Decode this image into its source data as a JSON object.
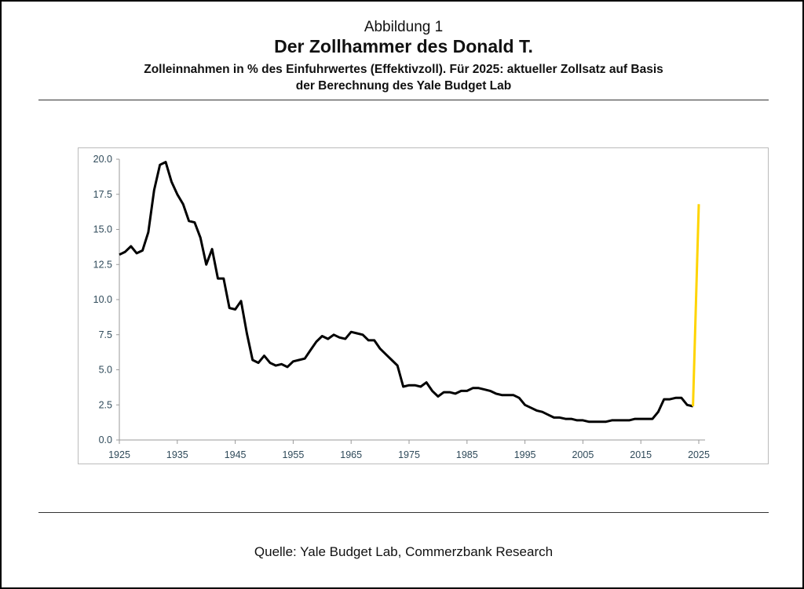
{
  "header": {
    "figure_label": "Abbildung 1",
    "title": "Der Zollhammer des Donald T.",
    "subtitle_line1": "Zolleinnahmen in % des Einfuhrwertes (Effektivzoll). Für 2025: aktueller Zollsatz auf Basis",
    "subtitle_line2": "der Berechnung des Yale Budget Lab"
  },
  "source": "Quelle: Yale Budget Lab, Commerzbank Research",
  "chart_data": {
    "type": "line",
    "title": "Der Zollhammer des Donald T.",
    "xlabel": "",
    "ylabel": "",
    "xlim": [
      1925,
      2025
    ],
    "ylim": [
      0,
      20
    ],
    "x_ticks": [
      "1925",
      "1935",
      "1945",
      "1955",
      "1965",
      "1975",
      "1985",
      "1995",
      "2005",
      "2015",
      "2025"
    ],
    "y_ticks": [
      "0.0",
      "2.5",
      "5.0",
      "7.5",
      "10.0",
      "12.5",
      "15.0",
      "17.5",
      "20.0"
    ],
    "grid": false,
    "series": [
      {
        "name": "Effektivzoll",
        "color": "#000000",
        "x_start": 1925,
        "values": [
          13.2,
          13.4,
          13.8,
          13.3,
          13.5,
          14.8,
          17.8,
          19.6,
          19.8,
          18.4,
          17.5,
          16.8,
          15.6,
          15.5,
          14.4,
          12.5,
          13.6,
          11.5,
          11.5,
          9.4,
          9.3,
          9.9,
          7.6,
          5.7,
          5.5,
          6.0,
          5.5,
          5.3,
          5.4,
          5.2,
          5.6,
          5.7,
          5.8,
          6.4,
          7.0,
          7.4,
          7.2,
          7.5,
          7.3,
          7.2,
          7.7,
          7.6,
          7.5,
          7.1,
          7.1,
          6.5,
          6.1,
          5.7,
          5.3,
          3.8,
          3.9,
          3.9,
          3.8,
          4.1,
          3.5,
          3.1,
          3.4,
          3.4,
          3.3,
          3.5,
          3.5,
          3.7,
          3.7,
          3.6,
          3.5,
          3.3,
          3.2,
          3.2,
          3.2,
          3.0,
          2.5,
          2.3,
          2.1,
          2.0,
          1.8,
          1.6,
          1.6,
          1.5,
          1.5,
          1.4,
          1.4,
          1.3,
          1.3,
          1.3,
          1.3,
          1.4,
          1.4,
          1.4,
          1.4,
          1.5,
          1.5,
          1.5,
          1.5,
          2.0,
          2.9,
          2.9,
          3.0,
          3.0,
          2.5,
          2.4
        ]
      },
      {
        "name": "2025 (Yale Budget Lab)",
        "color": "#FFD400",
        "x": [
          2024,
          2025
        ],
        "values": [
          2.4,
          16.8
        ]
      }
    ]
  }
}
